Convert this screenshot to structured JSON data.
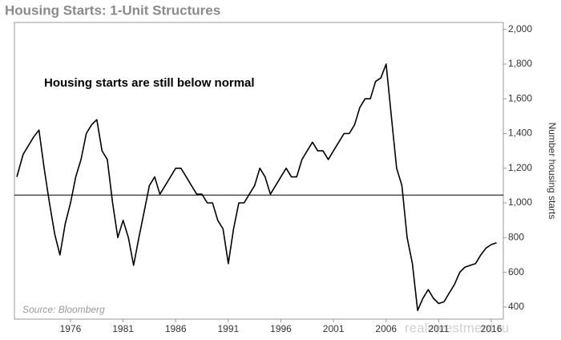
{
  "chart_data": {
    "type": "line",
    "title": "Housing Starts: 1-Unit Structures",
    "annotation": "Housing starts are still below normal",
    "source": "Source: Bloomberg",
    "watermark": "realinvestment.ru",
    "y_label": "Number housing starts",
    "xlim": [
      1970.67,
      2017.14
    ],
    "xticks": [
      1976,
      1981,
      1986,
      1991,
      1996,
      2001,
      2006,
      2011,
      2016
    ],
    "ylim": [
      330,
      2040
    ],
    "yticks": [
      {
        "value": 2000,
        "label": "2,000"
      },
      {
        "value": 1800,
        "label": "1,800"
      },
      {
        "value": 1600,
        "label": "1,600"
      },
      {
        "value": 1400,
        "label": "1,400"
      },
      {
        "value": 1200,
        "label": "1,200"
      },
      {
        "value": 1000,
        "label": "1,000"
      },
      800,
      600,
      400
    ],
    "reference_line": 1045,
    "x": [
      1970.9,
      1971.5,
      1972.0,
      1972.5,
      1973.0,
      1973.5,
      1974.0,
      1974.5,
      1975.0,
      1975.5,
      1976.0,
      1976.5,
      1977.0,
      1977.5,
      1978.0,
      1978.5,
      1979.0,
      1979.5,
      1980.0,
      1980.5,
      1981.0,
      1981.5,
      1982.0,
      1982.5,
      1983.0,
      1983.5,
      1984.0,
      1984.5,
      1985.0,
      1985.5,
      1986.0,
      1986.5,
      1987.0,
      1987.5,
      1988.0,
      1988.5,
      1989.0,
      1989.5,
      1990.0,
      1990.5,
      1991.0,
      1991.5,
      1992.0,
      1992.5,
      1993.0,
      1993.5,
      1994.0,
      1994.5,
      1995.0,
      1995.5,
      1996.0,
      1996.5,
      1997.0,
      1997.5,
      1998.0,
      1998.5,
      1999.0,
      1999.5,
      2000.0,
      2000.5,
      2001.0,
      2001.5,
      2002.0,
      2002.5,
      2003.0,
      2003.5,
      2004.0,
      2004.5,
      2005.0,
      2005.5,
      2006.0,
      2006.5,
      2007.0,
      2007.5,
      2008.0,
      2008.5,
      2009.0,
      2009.5,
      2010.0,
      2010.5,
      2011.0,
      2011.5,
      2012.0,
      2012.5,
      2013.0,
      2013.5,
      2014.0,
      2014.5,
      2015.0,
      2015.5,
      2016.0,
      2016.5
    ],
    "series": [
      {
        "color": "#000000",
        "values": [
          1150,
          1280,
          1330,
          1380,
          1420,
          1200,
          1000,
          820,
          700,
          880,
          1000,
          1150,
          1250,
          1400,
          1450,
          1480,
          1300,
          1250,
          1000,
          800,
          900,
          800,
          640,
          800,
          950,
          1100,
          1150,
          1050,
          1100,
          1150,
          1200,
          1200,
          1150,
          1100,
          1050,
          1050,
          1000,
          1000,
          900,
          850,
          650,
          850,
          1000,
          1000,
          1050,
          1100,
          1200,
          1150,
          1050,
          1100,
          1150,
          1200,
          1150,
          1150,
          1250,
          1300,
          1350,
          1300,
          1300,
          1250,
          1300,
          1350,
          1400,
          1400,
          1450,
          1550,
          1600,
          1600,
          1700,
          1720,
          1800,
          1500,
          1200,
          1100,
          800,
          650,
          380,
          450,
          500,
          450,
          420,
          430,
          480,
          530,
          600,
          630,
          640,
          650,
          700,
          740,
          760,
          770
        ]
      }
    ]
  }
}
